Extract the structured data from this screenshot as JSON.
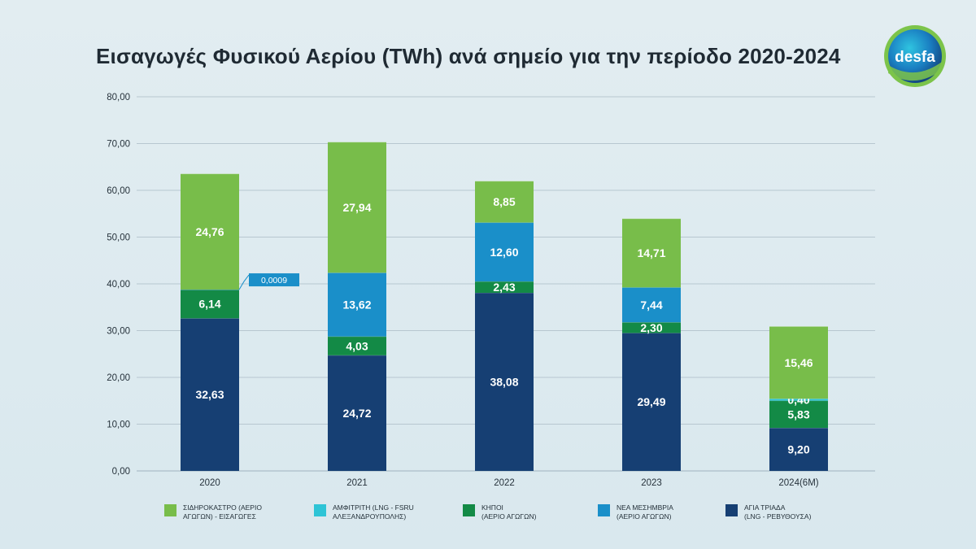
{
  "header": {
    "title": "Εισαγωγές Φυσικού Αερίου (TWh) ανά σημείο για την περίοδο 2020-2024",
    "logo_text": "desfa"
  },
  "colors": {
    "sidirokastro": "#78bd4a",
    "amfitriti": "#2ec4d6",
    "kipoi": "#138a46",
    "nea_mesimvria": "#1a8fc9",
    "agia_triada": "#163f73",
    "grid": "#b7c7d0",
    "axis_text": "#26323b",
    "callout": "#1a8fc9"
  },
  "chart_data": {
    "type": "bar",
    "stacked": true,
    "title": "Εισαγωγές Φυσικού Αερίου (TWh) ανά σημείο για την περίοδο 2020-2024",
    "xlabel": "",
    "ylabel": "",
    "ylim": [
      0,
      80
    ],
    "yticks": [
      "0,00",
      "10,00",
      "20,00",
      "30,00",
      "40,00",
      "50,00",
      "60,00",
      "70,00",
      "80,00"
    ],
    "grid": true,
    "legend_position": "bottom",
    "categories": [
      "2020",
      "2021",
      "2022",
      "2023",
      "2024(6M)"
    ],
    "series": [
      {
        "key": "agia_triada",
        "name": "ΑΓΙΑ ΤΡΙΑΔΑ\n(LNG - ΡΕΒΥΘΟΥΣΑ)",
        "values": [
          32.63,
          24.72,
          38.08,
          29.49,
          9.2
        ],
        "labels": [
          "32,63",
          "24,72",
          "38,08",
          "29,49",
          "9,20"
        ]
      },
      {
        "key": "kipoi",
        "name": "ΚΗΠΟΙ\n(ΑΕΡΙΟ ΑΓΩΓΩΝ)",
        "values": [
          6.14,
          4.03,
          2.43,
          2.3,
          5.83
        ],
        "labels": [
          "6,14",
          "4,03",
          "2,43",
          "2,30",
          "5,83"
        ]
      },
      {
        "key": "amfitriti",
        "name": "ΑΜΦΙΤΡΙΤΗ (LNG - FSRU\nΑΛΕΞΑΝΔΡΟΥΠΟΛΗΣ)",
        "values": [
          0,
          0,
          0,
          0,
          0.4
        ],
        "labels": [
          "",
          "",
          "",
          "",
          "0,40"
        ]
      },
      {
        "key": "nea_mesimvria",
        "name": "ΝΕΑ ΜΕΣΗΜΒΡΙΑ\n(ΑΕΡΙΟ ΑΓΩΓΩΝ)",
        "values": [
          0.0009,
          13.62,
          12.6,
          7.44,
          0
        ],
        "labels": [
          "",
          "13,62",
          "12,60",
          "7,44",
          ""
        ]
      },
      {
        "key": "sidirokastro",
        "name": "ΣΙΔΗΡΟΚΑΣΤΡΟ (ΑΕΡΙΟ\nΑΓΩΓΩΝ) - ΕΙΣΑΓΩΓΕΣ",
        "values": [
          24.76,
          27.94,
          8.85,
          14.71,
          15.46
        ],
        "labels": [
          "24,76",
          "27,94",
          "8,85",
          "14,71",
          "15,46"
        ]
      }
    ],
    "annotations": [
      {
        "category": "2020",
        "series": "nea_mesimvria",
        "text": "0,0009"
      }
    ]
  },
  "legend": [
    {
      "key": "sidirokastro",
      "label": "ΣΙΔΗΡΟΚΑΣΤΡΟ (ΑΕΡΙΟ\nΑΓΩΓΩΝ) - ΕΙΣΑΓΩΓΕΣ"
    },
    {
      "key": "amfitriti",
      "label": "ΑΜΦΙΤΡΙΤΗ (LNG - FSRU\nΑΛΕΞΑΝΔΡΟΥΠΟΛΗΣ)"
    },
    {
      "key": "kipoi",
      "label": "ΚΗΠΟΙ\n(ΑΕΡΙΟ ΑΓΩΓΩΝ)"
    },
    {
      "key": "nea_mesimvria",
      "label": "ΝΕΑ ΜΕΣΗΜΒΡΙΑ\n(ΑΕΡΙΟ ΑΓΩΓΩΝ)"
    },
    {
      "key": "agia_triada",
      "label": "ΑΓΙΑ ΤΡΙΑΔΑ\n(LNG - ΡΕΒΥΘΟΥΣΑ)"
    }
  ]
}
